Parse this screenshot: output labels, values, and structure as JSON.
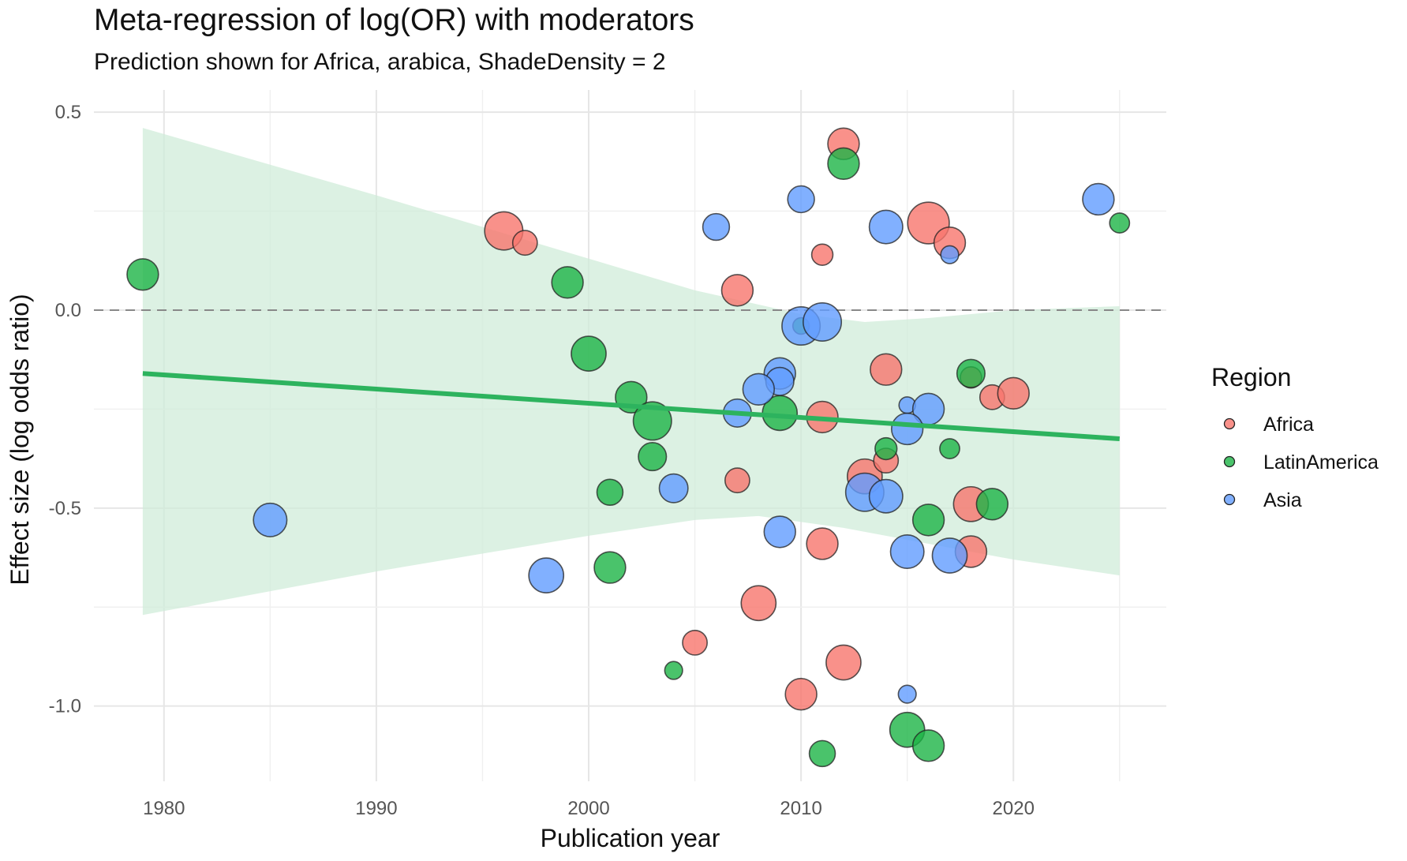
{
  "chart_data": {
    "type": "scatter",
    "title": "Meta-regression of log(OR) with moderators",
    "subtitle": "Prediction shown for Africa, arabica, ShadeDensity = 2",
    "xlabel": "Publication year",
    "ylabel": "Effect size (log odds ratio)",
    "xlim": [
      1976.7,
      2027.2
    ],
    "ylim": [
      -1.19,
      0.556
    ],
    "x_ticks": [
      1980,
      1990,
      2000,
      2010,
      2020
    ],
    "x_tick_labels": [
      "1980",
      "1990",
      "2000",
      "2010",
      "2020"
    ],
    "y_ticks": [
      0.5,
      0.0,
      -0.5,
      -1.0
    ],
    "y_tick_labels": [
      "0.5",
      "0.0",
      "-0.5",
      "-1.0"
    ],
    "grid": true,
    "reference_line": {
      "y": 0.0,
      "style": "dashed",
      "color": "#888888"
    },
    "legend": {
      "title": "Region",
      "position": "right",
      "entries": [
        "Africa",
        "LatinAmerica",
        "Asia"
      ]
    },
    "colors": {
      "Africa": "#F8766D",
      "LatinAmerica": "#1DB446",
      "Asia": "#619CFF",
      "fit": "#2DB35E",
      "ribbon": "#CDEBD7"
    },
    "fit_line": {
      "x": [
        1979,
        2025
      ],
      "y": [
        -0.16,
        -0.325
      ]
    },
    "confidence_band": {
      "upper": {
        "x": [
          1979,
          1990,
          2000,
          2005,
          2010,
          2013,
          2016,
          2020,
          2025
        ],
        "y": [
          0.46,
          0.29,
          0.13,
          0.05,
          -0.01,
          -0.03,
          -0.02,
          0.0,
          0.01
        ]
      },
      "lower": {
        "x": [
          1979,
          1990,
          2000,
          2005,
          2008,
          2012,
          2015,
          2020,
          2025
        ],
        "y": [
          -0.77,
          -0.66,
          -0.57,
          -0.53,
          -0.52,
          -0.55,
          -0.58,
          -0.63,
          -0.67
        ]
      }
    },
    "series": [
      {
        "name": "Africa",
        "points": [
          {
            "x": 1996,
            "y": 0.2,
            "w": 4
          },
          {
            "x": 1997,
            "y": 0.17,
            "w": 2
          },
          {
            "x": 2007,
            "y": 0.05,
            "w": 3
          },
          {
            "x": 2011,
            "y": 0.14,
            "w": 1.5
          },
          {
            "x": 2012,
            "y": 0.42,
            "w": 3
          },
          {
            "x": 2016,
            "y": 0.22,
            "w": 4.5
          },
          {
            "x": 2017,
            "y": 0.17,
            "w": 3
          },
          {
            "x": 2014,
            "y": -0.15,
            "w": 3
          },
          {
            "x": 2018,
            "y": -0.17,
            "w": 1.5
          },
          {
            "x": 2019,
            "y": -0.22,
            "w": 2
          },
          {
            "x": 2020,
            "y": -0.21,
            "w": 3
          },
          {
            "x": 2011,
            "y": -0.27,
            "w": 3
          },
          {
            "x": 2013,
            "y": -0.42,
            "w": 3.5
          },
          {
            "x": 2014,
            "y": -0.38,
            "w": 2
          },
          {
            "x": 2007,
            "y": -0.43,
            "w": 2
          },
          {
            "x": 2018,
            "y": -0.49,
            "w": 3.5
          },
          {
            "x": 2011,
            "y": -0.59,
            "w": 3
          },
          {
            "x": 2018,
            "y": -0.61,
            "w": 3
          },
          {
            "x": 2008,
            "y": -0.74,
            "w": 3.5
          },
          {
            "x": 2005,
            "y": -0.84,
            "w": 2
          },
          {
            "x": 2012,
            "y": -0.89,
            "w": 3.5
          },
          {
            "x": 2010,
            "y": -0.97,
            "w": 3
          }
        ]
      },
      {
        "name": "LatinAmerica",
        "points": [
          {
            "x": 1979,
            "y": 0.09,
            "w": 3
          },
          {
            "x": 1999,
            "y": 0.07,
            "w": 3
          },
          {
            "x": 2000,
            "y": -0.11,
            "w": 3.5
          },
          {
            "x": 2002,
            "y": -0.22,
            "w": 3
          },
          {
            "x": 2003,
            "y": -0.28,
            "w": 4
          },
          {
            "x": 2003,
            "y": -0.37,
            "w": 2.5
          },
          {
            "x": 2001,
            "y": -0.46,
            "w": 2.2
          },
          {
            "x": 2001,
            "y": -0.65,
            "w": 3
          },
          {
            "x": 2004,
            "y": -0.91,
            "w": 1
          },
          {
            "x": 2012,
            "y": 0.37,
            "w": 3
          },
          {
            "x": 2025,
            "y": 0.22,
            "w": 1.3
          },
          {
            "x": 2010,
            "y": -0.04,
            "w": 0.8
          },
          {
            "x": 2009,
            "y": -0.26,
            "w": 3.5
          },
          {
            "x": 2014,
            "y": -0.35,
            "w": 1.6
          },
          {
            "x": 2018,
            "y": -0.16,
            "w": 2.5
          },
          {
            "x": 2017,
            "y": -0.35,
            "w": 1.3
          },
          {
            "x": 2016,
            "y": -0.53,
            "w": 3
          },
          {
            "x": 2019,
            "y": -0.49,
            "w": 3
          },
          {
            "x": 2015,
            "y": -1.06,
            "w": 3.5
          },
          {
            "x": 2016,
            "y": -1.1,
            "w": 3
          },
          {
            "x": 2011,
            "y": -1.12,
            "w": 2.2
          }
        ]
      },
      {
        "name": "Asia",
        "points": [
          {
            "x": 1985,
            "y": -0.53,
            "w": 3.3
          },
          {
            "x": 1998,
            "y": -0.67,
            "w": 3.5
          },
          {
            "x": 2004,
            "y": -0.45,
            "w": 2.6
          },
          {
            "x": 2006,
            "y": 0.21,
            "w": 2.3
          },
          {
            "x": 2010,
            "y": 0.28,
            "w": 2.3
          },
          {
            "x": 2014,
            "y": 0.21,
            "w": 3.3
          },
          {
            "x": 2017,
            "y": 0.14,
            "w": 1
          },
          {
            "x": 2024,
            "y": 0.28,
            "w": 3
          },
          {
            "x": 2010,
            "y": -0.04,
            "w": 4
          },
          {
            "x": 2011,
            "y": -0.03,
            "w": 4
          },
          {
            "x": 2009,
            "y": -0.16,
            "w": 3
          },
          {
            "x": 2009,
            "y": -0.18,
            "w": 2.5
          },
          {
            "x": 2008,
            "y": -0.2,
            "w": 3
          },
          {
            "x": 2007,
            "y": -0.26,
            "w": 2.5
          },
          {
            "x": 2015,
            "y": -0.24,
            "w": 0.8
          },
          {
            "x": 2016,
            "y": -0.25,
            "w": 3
          },
          {
            "x": 2015,
            "y": -0.3,
            "w": 3
          },
          {
            "x": 2013,
            "y": -0.46,
            "w": 4
          },
          {
            "x": 2014,
            "y": -0.47,
            "w": 3.3
          },
          {
            "x": 2009,
            "y": -0.56,
            "w": 3
          },
          {
            "x": 2015,
            "y": -0.61,
            "w": 3.3
          },
          {
            "x": 2017,
            "y": -0.62,
            "w": 3.5
          },
          {
            "x": 2015,
            "y": -0.97,
            "w": 1
          }
        ]
      }
    ]
  }
}
